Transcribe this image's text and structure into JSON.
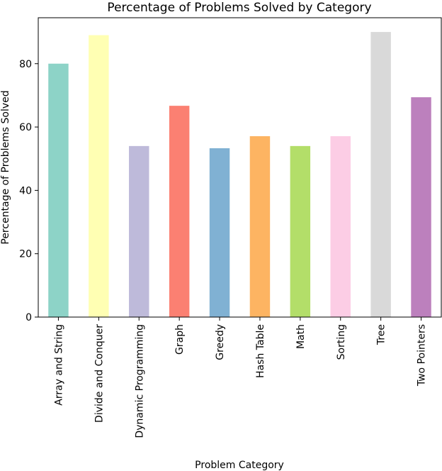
{
  "chart_data": {
    "type": "bar",
    "title": "Percentage of Problems Solved by Category",
    "xlabel": "Problem Category",
    "ylabel": "Percentage of Problems Solved",
    "categories": [
      "Array and String",
      "Divide and Conquer",
      "Dynamic Programming",
      "Graph",
      "Greedy",
      "Hash Table",
      "Math",
      "Sorting",
      "Tree",
      "Two Pointers"
    ],
    "values": [
      80.0,
      89.0,
      54.0,
      66.7,
      53.3,
      57.1,
      54.0,
      57.1,
      90.0,
      69.4
    ],
    "colors": [
      "#8dd3c7",
      "#ffffb3",
      "#bebada",
      "#fb8072",
      "#80b1d3",
      "#fdb462",
      "#b3de69",
      "#fccde5",
      "#d9d9d9",
      "#bc80bd"
    ],
    "yticks": [
      0,
      20,
      40,
      60,
      80
    ],
    "ylim": [
      0,
      94.5
    ],
    "grid": false
  }
}
